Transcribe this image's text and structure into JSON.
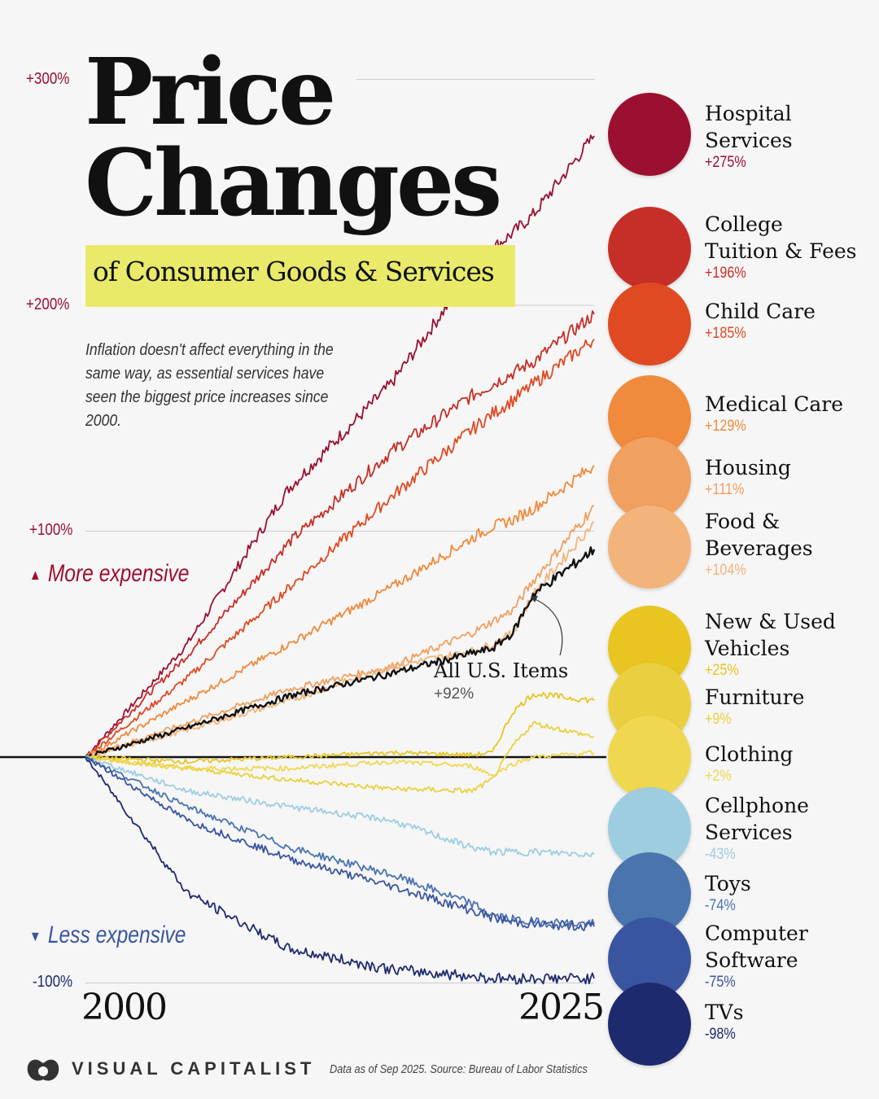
{
  "title_line1": "Price",
  "title_line2": "Changes",
  "subtitle": "of Consumer Goods & Services",
  "description": "Inflation doesn't affect everything in the same way, as essential services have seen the biggest price increases since 2000.",
  "more_expensive": "More expensive",
  "less_expensive": "Less expensive",
  "footer": {
    "brand": "VISUAL CAPITALIST",
    "source": "Data as of Sep 2025. Source: Bureau of Labor Statistics"
  },
  "chart_data": {
    "type": "line",
    "x": [
      2000,
      2005,
      2010,
      2015,
      2019,
      2020,
      2021,
      2022,
      2025
    ],
    "x_tick_labels": [
      "2000",
      "2025"
    ],
    "y_tick_labels": [
      "+300%",
      "+200%",
      "+100%",
      "-100%"
    ],
    "ylim": [
      -100,
      300
    ],
    "xlim": [
      2000,
      2025
    ],
    "grid": true,
    "series": [
      {
        "name": "Hospital Services",
        "label": "+275%",
        "color": "#9b1030",
        "values": [
          0,
          50,
          119,
          165,
          215,
          225,
          232,
          240,
          275
        ]
      },
      {
        "name": "College Tuition & Fees",
        "label": "+196%",
        "color": "#c62f27",
        "values": [
          0,
          45,
          95,
          135,
          160,
          165,
          170,
          175,
          196
        ]
      },
      {
        "name": "Child Care",
        "label": "+185%",
        "color": "#e04a22",
        "values": [
          0,
          35,
          75,
          115,
          145,
          152,
          158,
          165,
          185
        ]
      },
      {
        "name": "Medical Care",
        "label": "+129%",
        "color": "#f08a3c",
        "values": [
          0,
          25,
          50,
          75,
          97,
          102,
          105,
          110,
          129
        ]
      },
      {
        "name": "Housing",
        "label": "+111%",
        "color": "#f0a060",
        "values": [
          0,
          15,
          30,
          40,
          55,
          60,
          65,
          78,
          111
        ]
      },
      {
        "name": "Food & Beverages",
        "label": "+104%",
        "color": "#f2b47a",
        "values": [
          0,
          12,
          25,
          40,
          47,
          50,
          55,
          72,
          104
        ]
      },
      {
        "name": "All U.S. Items",
        "label": "+92%",
        "color": "#111111",
        "values": [
          0,
          13,
          27,
          37,
          46,
          48,
          55,
          72,
          92
        ]
      },
      {
        "name": "New & Used Vehicles",
        "label": "+25%",
        "color": "#e8c520",
        "values": [
          0,
          -2,
          0,
          2,
          1,
          2,
          20,
          28,
          25
        ]
      },
      {
        "name": "Furniture",
        "label": "+9%",
        "color": "#ead040",
        "values": [
          0,
          -5,
          -10,
          -14,
          -15,
          -10,
          5,
          15,
          9
        ]
      },
      {
        "name": "Clothing",
        "label": "+2%",
        "color": "#efd850",
        "values": [
          0,
          -5,
          -5,
          -2,
          -4,
          -8,
          -3,
          0,
          2
        ]
      },
      {
        "name": "Cellphone Services",
        "label": "-43%",
        "color": "#9ecde0",
        "values": [
          0,
          -15,
          -22,
          -28,
          -40,
          -42,
          -42,
          -42,
          -43
        ]
      },
      {
        "name": "Toys",
        "label": "-74%",
        "color": "#4a74ae",
        "values": [
          0,
          -22,
          -40,
          -52,
          -65,
          -70,
          -72,
          -73,
          -74
        ]
      },
      {
        "name": "Computer Software",
        "label": "-75%",
        "color": "#3a55a0",
        "values": [
          0,
          -28,
          -45,
          -57,
          -68,
          -71,
          -73,
          -74,
          -75
        ]
      },
      {
        "name": "TVs",
        "label": "-98%",
        "color": "#1e2a6e",
        "values": [
          0,
          -60,
          -85,
          -94,
          -97,
          -98,
          -98,
          -98,
          -98
        ]
      }
    ]
  },
  "legend": [
    {
      "lines": [
        "Hospital",
        "Services"
      ],
      "value": "+275%",
      "color": "#9b1030",
      "icon": "stethoscope-icon"
    },
    {
      "lines": [
        "College",
        "Tuition & Fees"
      ],
      "value": "+196%",
      "color": "#c62f27",
      "icon": "graduation-cap-icon"
    },
    {
      "lines": [
        "Child Care"
      ],
      "value": "+185%",
      "color": "#e04a22",
      "icon": "baby-bottle-icon"
    },
    {
      "lines": [
        "Medical Care"
      ],
      "value": "+129%",
      "color": "#f08a3c",
      "icon": "pills-icon"
    },
    {
      "lines": [
        "Housing"
      ],
      "value": "+111%",
      "color": "#f0a060",
      "icon": "house-icon"
    },
    {
      "lines": [
        "Food &",
        "Beverages"
      ],
      "value": "+104%",
      "color": "#f2b47a",
      "icon": "milk-bottle-icon"
    },
    {
      "lines": [
        "New & Used",
        "Vehicles"
      ],
      "value": "+25%",
      "color": "#e8c520",
      "icon": "car-icon"
    },
    {
      "lines": [
        "Furniture"
      ],
      "value": "+9%",
      "color": "#ead040",
      "icon": "armchair-icon"
    },
    {
      "lines": [
        "Clothing"
      ],
      "value": "+2%",
      "color": "#efd850",
      "icon": "folded-clothes-icon"
    },
    {
      "lines": [
        "Cellphone",
        "Services"
      ],
      "value": "-43%",
      "color": "#9ecde0",
      "icon": "phone-icon"
    },
    {
      "lines": [
        "Toys"
      ],
      "value": "-74%",
      "color": "#4a74ae",
      "icon": "drone-icon"
    },
    {
      "lines": [
        "Computer",
        "Software"
      ],
      "value": "-75%",
      "color": "#3a55a0",
      "icon": "laptop-icon"
    },
    {
      "lines": [
        "TVs"
      ],
      "value": "-98%",
      "color": "#1e2a6e",
      "icon": "tv-icon"
    }
  ]
}
